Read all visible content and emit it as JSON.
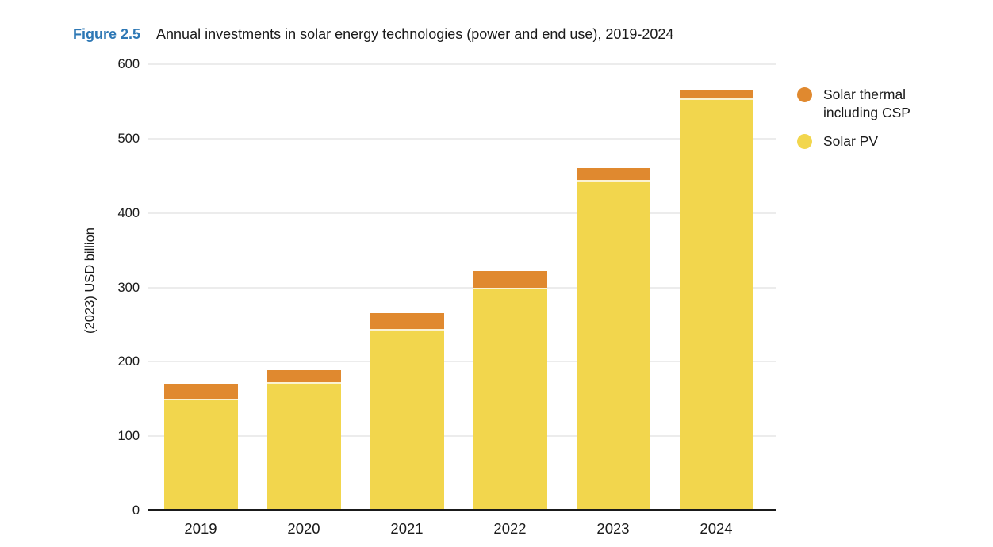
{
  "figure": {
    "label": "Figure 2.5",
    "title": "Annual investments in solar energy technologies (power and end use), 2019-2024"
  },
  "chart_data": {
    "type": "bar",
    "stacked": true,
    "title": "Annual investments in solar energy technologies (power and end use), 2019-2024",
    "categories": [
      "2019",
      "2020",
      "2021",
      "2022",
      "2023",
      "2024"
    ],
    "series": [
      {
        "name": "Solar thermal including CSP",
        "color": "#E0892F",
        "values": [
          21,
          16,
          21,
          22,
          16,
          12
        ]
      },
      {
        "name": "Solar PV",
        "color": "#F2D64D",
        "values": [
          150,
          173,
          244,
          300,
          444,
          554
        ]
      }
    ],
    "totals": [
      171,
      189,
      265,
      322,
      460,
      566
    ],
    "xlabel": "",
    "ylabel": "(2023) USD billion",
    "ylim": [
      0,
      600
    ],
    "yticks": [
      0,
      100,
      200,
      300,
      400,
      500,
      600
    ],
    "grid": "horizontal",
    "legend_position": "right",
    "colors": {
      "figure_label_blue": "#2E78B5",
      "axis": "#1a1a1a",
      "gridline": "#ECECEC",
      "segment_separator": "#FBF2D2",
      "text": "#1a1a1a"
    }
  }
}
